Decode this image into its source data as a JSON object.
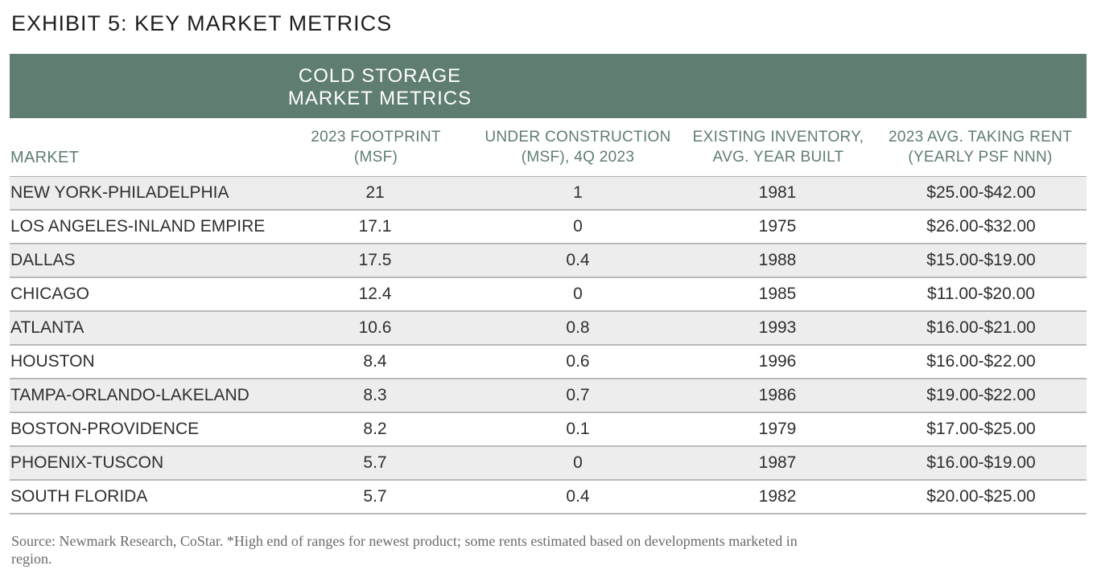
{
  "title": "EXHIBIT 5: KEY MARKET METRICS",
  "banner": {
    "line1": "COLD STORAGE",
    "line2": "MARKET METRICS"
  },
  "colors": {
    "accent": "#5f7d71",
    "row_shade": "#ededed",
    "rule": "#b9b9b9"
  },
  "chart_data": {
    "type": "table",
    "title": "EXHIBIT 5: KEY MARKET METRICS",
    "group_header": "COLD STORAGE MARKET METRICS",
    "columns": [
      {
        "key": "market",
        "lines": [
          "MARKET"
        ]
      },
      {
        "key": "footprint",
        "lines": [
          "2023 FOOTPRINT",
          "(MSF)"
        ]
      },
      {
        "key": "under_construction",
        "lines": [
          "UNDER CONSTRUCTION",
          "(MSF), 4Q 2023"
        ]
      },
      {
        "key": "year_built",
        "lines": [
          "EXISTING INVENTORY,",
          "AVG. YEAR BUILT"
        ]
      },
      {
        "key": "rent",
        "lines": [
          "2023 AVG. TAKING RENT",
          "(YEARLY PSF NNN)"
        ]
      }
    ],
    "rows": [
      {
        "market": "NEW YORK-PHILADELPHIA",
        "footprint": "21",
        "under_construction": "1",
        "year_built": "1981",
        "rent": "$25.00-$42.00"
      },
      {
        "market": "LOS ANGELES-INLAND EMPIRE",
        "footprint": "17.1",
        "under_construction": "0",
        "year_built": "1975",
        "rent": "$26.00-$32.00"
      },
      {
        "market": "DALLAS",
        "footprint": "17.5",
        "under_construction": "0.4",
        "year_built": "1988",
        "rent": "$15.00-$19.00"
      },
      {
        "market": "CHICAGO",
        "footprint": "12.4",
        "under_construction": "0",
        "year_built": "1985",
        "rent": "$11.00-$20.00"
      },
      {
        "market": "ATLANTA",
        "footprint": "10.6",
        "under_construction": "0.8",
        "year_built": "1993",
        "rent": "$16.00-$21.00"
      },
      {
        "market": "HOUSTON",
        "footprint": "8.4",
        "under_construction": "0.6",
        "year_built": "1996",
        "rent": "$16.00-$22.00"
      },
      {
        "market": "TAMPA-ORLANDO-LAKELAND",
        "footprint": "8.3",
        "under_construction": "0.7",
        "year_built": "1986",
        "rent": "$19.00-$22.00"
      },
      {
        "market": "BOSTON-PROVIDENCE",
        "footprint": "8.2",
        "under_construction": "0.1",
        "year_built": "1979",
        "rent": "$17.00-$25.00"
      },
      {
        "market": "PHOENIX-TUSCON",
        "footprint": "5.7",
        "under_construction": "0",
        "year_built": "1987",
        "rent": "$16.00-$19.00"
      },
      {
        "market": "SOUTH FLORIDA",
        "footprint": "5.7",
        "under_construction": "0.4",
        "year_built": "1982",
        "rent": "$20.00-$25.00"
      }
    ]
  },
  "source": "Source: Newmark Research, CoStar. *High end of ranges for newest product; some rents estimated based on developments marketed in region."
}
